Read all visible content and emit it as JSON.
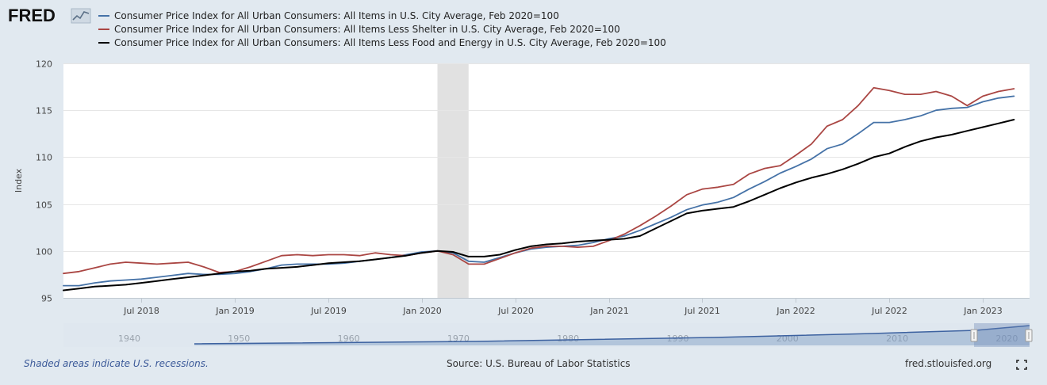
{
  "header": {
    "logo_text": "FRED",
    "logo_icon": "chart-graph-icon"
  },
  "chart_data": {
    "type": "line",
    "title": "",
    "xlabel": "",
    "ylabel": "Index",
    "ylim": [
      95,
      120
    ],
    "yticks": [
      95,
      100,
      105,
      110,
      115,
      120
    ],
    "x_range": [
      "2018-02",
      "2023-04"
    ],
    "xticks": [
      {
        "date": "2018-07",
        "label": "Jul 2018"
      },
      {
        "date": "2019-01",
        "label": "Jan 2019"
      },
      {
        "date": "2019-07",
        "label": "Jul 2019"
      },
      {
        "date": "2020-01",
        "label": "Jan 2020"
      },
      {
        "date": "2020-07",
        "label": "Jul 2020"
      },
      {
        "date": "2021-01",
        "label": "Jan 2021"
      },
      {
        "date": "2021-07",
        "label": "Jul 2021"
      },
      {
        "date": "2022-01",
        "label": "Jan 2022"
      },
      {
        "date": "2022-07",
        "label": "Jul 2022"
      },
      {
        "date": "2023-01",
        "label": "Jan 2023"
      }
    ],
    "recessions": [
      {
        "start": "2020-02",
        "end": "2020-04"
      }
    ],
    "grid": true,
    "legend": "top",
    "x": [
      "2018-02",
      "2018-03",
      "2018-04",
      "2018-05",
      "2018-06",
      "2018-07",
      "2018-08",
      "2018-09",
      "2018-10",
      "2018-11",
      "2018-12",
      "2019-01",
      "2019-02",
      "2019-03",
      "2019-04",
      "2019-05",
      "2019-06",
      "2019-07",
      "2019-08",
      "2019-09",
      "2019-10",
      "2019-11",
      "2019-12",
      "2020-01",
      "2020-02",
      "2020-03",
      "2020-04",
      "2020-05",
      "2020-06",
      "2020-07",
      "2020-08",
      "2020-09",
      "2020-10",
      "2020-11",
      "2020-12",
      "2021-01",
      "2021-02",
      "2021-03",
      "2021-04",
      "2021-05",
      "2021-06",
      "2021-07",
      "2021-08",
      "2021-09",
      "2021-10",
      "2021-11",
      "2021-12",
      "2022-01",
      "2022-02",
      "2022-03",
      "2022-04",
      "2022-05",
      "2022-06",
      "2022-07",
      "2022-08",
      "2022-09",
      "2022-10",
      "2022-11",
      "2022-12",
      "2023-01",
      "2023-02",
      "2023-03"
    ],
    "series": [
      {
        "name": "Consumer Price Index for All Urban Consumers: All Items in U.S. City Average, Feb 2020=100",
        "color": "#4572a7",
        "values": [
          96.3,
          96.3,
          96.6,
          96.8,
          96.9,
          97.0,
          97.2,
          97.4,
          97.6,
          97.5,
          97.5,
          97.6,
          97.8,
          98.1,
          98.5,
          98.6,
          98.6,
          98.6,
          98.7,
          98.9,
          99.1,
          99.3,
          99.6,
          99.9,
          100.0,
          99.8,
          98.9,
          98.8,
          99.3,
          99.8,
          100.2,
          100.4,
          100.5,
          100.6,
          100.9,
          101.3,
          101.6,
          102.2,
          102.9,
          103.6,
          104.4,
          104.9,
          105.2,
          105.7,
          106.6,
          107.4,
          108.3,
          109.0,
          109.8,
          110.9,
          111.4,
          112.5,
          113.7,
          113.7,
          114.0,
          114.4,
          115.0,
          115.2,
          115.3,
          115.9,
          116.3,
          116.5
        ]
      },
      {
        "name": "Consumer Price Index for All Urban Consumers: All Items Less Shelter in U.S. City Average, Feb 2020=100",
        "color": "#aa4643",
        "values": [
          97.6,
          97.8,
          98.2,
          98.6,
          98.8,
          98.7,
          98.6,
          98.7,
          98.8,
          98.3,
          97.7,
          97.8,
          98.3,
          98.9,
          99.5,
          99.6,
          99.5,
          99.6,
          99.6,
          99.5,
          99.8,
          99.6,
          99.5,
          99.8,
          100.0,
          99.6,
          98.6,
          98.6,
          99.2,
          99.8,
          100.3,
          100.5,
          100.5,
          100.4,
          100.5,
          101.1,
          101.8,
          102.7,
          103.7,
          104.8,
          106.0,
          106.6,
          106.8,
          107.1,
          108.2,
          108.8,
          109.1,
          110.2,
          111.4,
          113.3,
          114.0,
          115.5,
          117.4,
          117.1,
          116.7,
          116.7,
          117.0,
          116.5,
          115.5,
          116.5,
          117.0,
          117.3
        ]
      },
      {
        "name": "Consumer Price Index for All Urban Consumers: All Items Less Food and Energy in U.S. City Average, Feb 2020=100",
        "color": "#000000",
        "values": [
          95.8,
          96.0,
          96.2,
          96.3,
          96.4,
          96.6,
          96.8,
          97.0,
          97.2,
          97.4,
          97.6,
          97.8,
          97.9,
          98.1,
          98.2,
          98.3,
          98.5,
          98.7,
          98.8,
          98.9,
          99.1,
          99.3,
          99.5,
          99.8,
          100.0,
          99.9,
          99.4,
          99.4,
          99.6,
          100.1,
          100.5,
          100.7,
          100.8,
          101.0,
          101.1,
          101.2,
          101.3,
          101.6,
          102.4,
          103.2,
          104.0,
          104.3,
          104.5,
          104.7,
          105.3,
          106.0,
          106.7,
          107.3,
          107.8,
          108.2,
          108.7,
          109.3,
          110.0,
          110.4,
          111.1,
          111.7,
          112.1,
          112.4,
          112.8,
          113.2,
          113.6,
          114.0
        ]
      }
    ]
  },
  "navigator": {
    "labels": [
      "1940",
      "1950",
      "1960",
      "1970",
      "1980",
      "1990",
      "2000",
      "2010",
      "2020"
    ]
  },
  "footer": {
    "recession_note": "Shaded areas indicate U.S. recessions.",
    "source": "Source: U.S. Bureau of Labor Statistics",
    "site": "fred.stlouisfed.org",
    "fullscreen_icon": "fullscreen-icon"
  }
}
